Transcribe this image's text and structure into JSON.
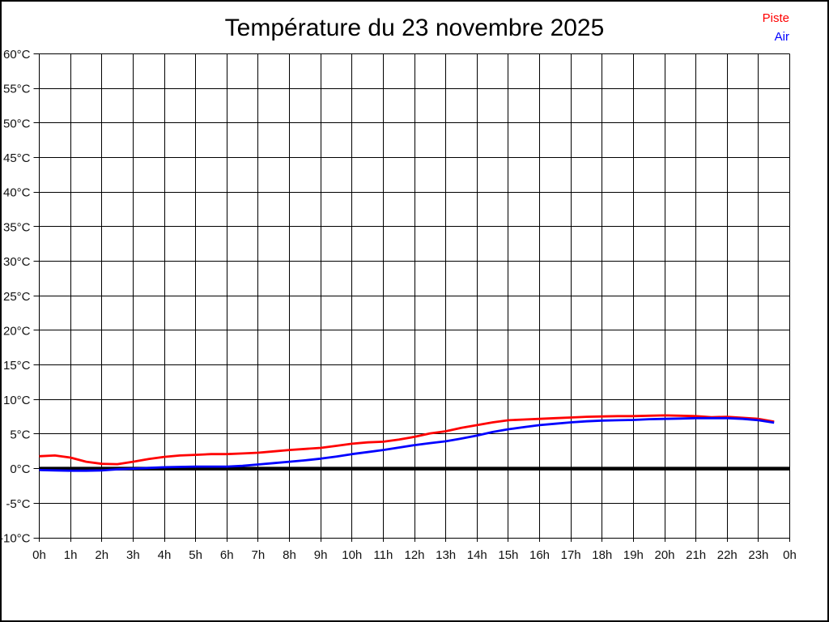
{
  "page": {
    "background": "#ffffff",
    "border_color": "#000000"
  },
  "header": {
    "title": "Température du 23 novembre 2025"
  },
  "legend": {
    "position": "top-right",
    "items": [
      {
        "label": "Piste",
        "color": "#ff0000"
      },
      {
        "label": "Air",
        "color": "#0000ff"
      }
    ]
  },
  "chart_data": {
    "type": "line",
    "title": "Température du 23 novembre 2025",
    "xlabel": "",
    "ylabel": "",
    "x_unit": "hour",
    "y_unit": "°C",
    "xlim": [
      0,
      24
    ],
    "ylim": [
      -10,
      60
    ],
    "ytick_step": 5,
    "ytick_values": [
      60,
      55,
      50,
      45,
      40,
      35,
      30,
      25,
      20,
      15,
      10,
      5,
      0,
      -5,
      -10
    ],
    "ytick_labels": [
      "60°C",
      "55°C",
      "50°C",
      "45°C",
      "40°C",
      "35°C",
      "30°C",
      "25°C",
      "20°C",
      "15°C",
      "10°C",
      "5°C",
      "0°C",
      "-5°C",
      "-10°C"
    ],
    "xtick_values": [
      0,
      1,
      2,
      3,
      4,
      5,
      6,
      7,
      8,
      9,
      10,
      11,
      12,
      13,
      14,
      15,
      16,
      17,
      18,
      19,
      20,
      21,
      22,
      23,
      24
    ],
    "xtick_labels": [
      "0h",
      "1h",
      "2h",
      "3h",
      "4h",
      "5h",
      "6h",
      "7h",
      "8h",
      "9h",
      "10h",
      "11h",
      "12h",
      "13h",
      "14h",
      "15h",
      "16h",
      "17h",
      "18h",
      "19h",
      "20h",
      "21h",
      "22h",
      "23h",
      "0h"
    ],
    "grid": true,
    "grid_color": "#000000",
    "zero_line": {
      "value": 0,
      "color": "#000000",
      "width": 4.5
    },
    "legend_position": "top-right",
    "x": [
      0,
      0.5,
      1,
      1.5,
      2,
      2.5,
      3,
      3.5,
      4,
      4.5,
      5,
      5.5,
      6,
      6.5,
      7,
      7.5,
      8,
      8.5,
      9,
      9.5,
      10,
      10.5,
      11,
      11.5,
      12,
      12.5,
      13,
      13.5,
      14,
      14.5,
      15,
      15.5,
      16,
      16.5,
      17,
      17.5,
      18,
      18.5,
      19,
      19.5,
      20,
      20.5,
      21,
      21.5,
      22,
      22.5,
      23,
      23.5
    ],
    "series": [
      {
        "name": "Piste",
        "color": "#ff0000",
        "values": [
          1.8,
          1.9,
          1.6,
          1.0,
          0.7,
          0.65,
          1.0,
          1.4,
          1.7,
          1.9,
          2.0,
          2.1,
          2.1,
          2.2,
          2.3,
          2.5,
          2.7,
          2.85,
          3.0,
          3.3,
          3.6,
          3.8,
          3.9,
          4.2,
          4.6,
          5.1,
          5.4,
          5.9,
          6.3,
          6.7,
          7.0,
          7.1,
          7.2,
          7.3,
          7.4,
          7.5,
          7.55,
          7.6,
          7.6,
          7.65,
          7.7,
          7.65,
          7.6,
          7.45,
          7.5,
          7.35,
          7.2,
          6.8
        ]
      },
      {
        "name": "Air",
        "color": "#0000ff",
        "values": [
          -0.2,
          -0.25,
          -0.3,
          -0.3,
          -0.25,
          -0.1,
          0.0,
          0.1,
          0.2,
          0.25,
          0.3,
          0.3,
          0.3,
          0.4,
          0.6,
          0.8,
          1.0,
          1.2,
          1.45,
          1.75,
          2.1,
          2.4,
          2.7,
          3.05,
          3.4,
          3.7,
          3.95,
          4.35,
          4.8,
          5.3,
          5.7,
          6.0,
          6.3,
          6.5,
          6.7,
          6.85,
          6.95,
          7.0,
          7.05,
          7.15,
          7.2,
          7.25,
          7.3,
          7.3,
          7.3,
          7.2,
          7.0,
          6.65
        ]
      }
    ]
  }
}
